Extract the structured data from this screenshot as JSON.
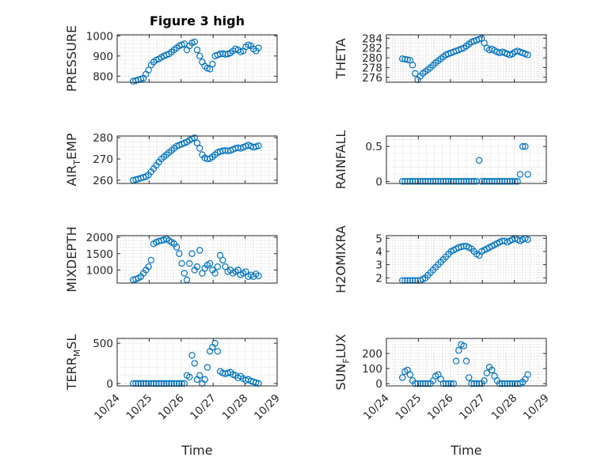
{
  "figure": {
    "title": "Figure 3 high",
    "marker_color": "#0072bd"
  },
  "chart_data": [
    {
      "id": "pressure",
      "type": "scatter",
      "title": "Figure 3 high",
      "ylabel": "PRESSURE",
      "ylim": [
        770,
        1005
      ],
      "yticks": [
        800,
        900,
        1000
      ],
      "xlim": [
        24,
        29
      ],
      "xticks": [],
      "xlabel": "",
      "grid": true,
      "x": [
        24.5,
        24.58,
        24.66,
        24.74,
        24.82,
        24.9,
        24.98,
        25.06,
        25.14,
        25.22,
        25.3,
        25.38,
        25.46,
        25.54,
        25.62,
        25.7,
        25.78,
        25.86,
        25.94,
        26.02,
        26.1,
        26.18,
        26.26,
        26.34,
        26.42,
        26.5,
        26.58,
        26.66,
        26.74,
        26.82,
        26.9,
        26.98,
        27.06,
        27.14,
        27.22,
        27.3,
        27.38,
        27.46,
        27.54,
        27.62,
        27.7,
        27.78,
        27.86,
        27.94,
        28.02,
        28.1,
        28.18,
        28.26,
        28.34,
        28.42
      ],
      "y": [
        775,
        778,
        782,
        786,
        790,
        810,
        830,
        855,
        870,
        880,
        885,
        893,
        900,
        905,
        910,
        920,
        930,
        940,
        950,
        955,
        960,
        930,
        950,
        965,
        970,
        930,
        900,
        870,
        850,
        840,
        835,
        860,
        900,
        905,
        910,
        912,
        908,
        910,
        915,
        925,
        935,
        930,
        920,
        925,
        945,
        955,
        950,
        935,
        925,
        940
      ]
    },
    {
      "id": "theta",
      "type": "scatter",
      "ylabel": "THETA",
      "ylim": [
        275,
        284.7
      ],
      "yticks": [
        276,
        278,
        280,
        282,
        284
      ],
      "xlim": [
        24,
        29
      ],
      "xticks": [],
      "xlabel": "",
      "grid": true,
      "x": [
        24.5,
        24.58,
        24.66,
        24.74,
        24.82,
        24.9,
        24.98,
        25.06,
        25.14,
        25.22,
        25.3,
        25.38,
        25.46,
        25.54,
        25.62,
        25.7,
        25.78,
        25.86,
        25.94,
        26.02,
        26.1,
        26.18,
        26.26,
        26.34,
        26.42,
        26.5,
        26.58,
        26.66,
        26.74,
        26.82,
        26.9,
        26.98,
        27.06,
        27.14,
        27.22,
        27.3,
        27.38,
        27.46,
        27.54,
        27.62,
        27.7,
        27.78,
        27.86,
        27.94,
        28.02,
        28.1,
        28.18,
        28.26,
        28.34,
        28.42
      ],
      "y": [
        279.8,
        279.7,
        279.6,
        279.5,
        278.5,
        276.8,
        275.5,
        276.2,
        276.8,
        277.2,
        277.6,
        278.0,
        278.5,
        279.0,
        279.4,
        279.8,
        280.2,
        280.6,
        280.8,
        281.0,
        281.2,
        281.4,
        281.6,
        281.8,
        282.0,
        282.4,
        282.8,
        283.2,
        283.4,
        283.6,
        283.8,
        284.0,
        283.0,
        282.0,
        281.6,
        281.8,
        281.5,
        281.2,
        281.0,
        281.2,
        281.0,
        280.8,
        280.6,
        280.8,
        281.2,
        281.4,
        281.2,
        281.0,
        280.8,
        280.6
      ]
    },
    {
      "id": "air_temp",
      "type": "scatter",
      "ylabel": "AIR",
      "ylabel_sub": "T",
      "ylabel_rest": "EMP",
      "ylim": [
        258.5,
        280.8
      ],
      "yticks": [
        260,
        270,
        280
      ],
      "xlim": [
        24,
        29
      ],
      "xticks": [],
      "xlabel": "",
      "grid": true,
      "x": [
        24.5,
        24.58,
        24.66,
        24.74,
        24.82,
        24.9,
        24.98,
        25.06,
        25.14,
        25.22,
        25.3,
        25.38,
        25.46,
        25.54,
        25.62,
        25.7,
        25.78,
        25.86,
        25.94,
        26.02,
        26.1,
        26.18,
        26.26,
        26.34,
        26.42,
        26.5,
        26.58,
        26.66,
        26.74,
        26.82,
        26.9,
        26.98,
        27.06,
        27.14,
        27.22,
        27.3,
        27.38,
        27.46,
        27.54,
        27.62,
        27.7,
        27.78,
        27.86,
        27.94,
        28.02,
        28.1,
        28.18,
        28.26,
        28.34,
        28.42
      ],
      "y": [
        260,
        260.3,
        260.6,
        261,
        261.4,
        261.7,
        262.5,
        264,
        265.5,
        267,
        268.5,
        270,
        271,
        272,
        273,
        274,
        275,
        276,
        276.5,
        277,
        277.5,
        278,
        278.8,
        279.5,
        280,
        277.5,
        275,
        272,
        270.5,
        270,
        270.2,
        271,
        272,
        273,
        273.5,
        273.8,
        274,
        273.8,
        274,
        274.5,
        275,
        275.3,
        275,
        275.5,
        276,
        276.5,
        276,
        275.5,
        275.8,
        276.2
      ]
    },
    {
      "id": "rainfall",
      "type": "scatter",
      "ylabel": "RAINFALL",
      "ylim": [
        -0.03,
        0.65
      ],
      "yticks": [
        0,
        0.5
      ],
      "ytick_labels": [
        "0",
        "0.5"
      ],
      "xlim": [
        24,
        29
      ],
      "xticks": [],
      "xlabel": "",
      "grid": true,
      "x": [
        24.5,
        24.58,
        24.66,
        24.74,
        24.82,
        24.9,
        24.98,
        25.06,
        25.14,
        25.22,
        25.3,
        25.38,
        25.46,
        25.54,
        25.62,
        25.7,
        25.78,
        25.86,
        25.94,
        26.02,
        26.1,
        26.18,
        26.26,
        26.34,
        26.42,
        26.5,
        26.58,
        26.66,
        26.74,
        26.82,
        26.9,
        26.98,
        27.06,
        27.14,
        27.22,
        27.3,
        27.38,
        27.46,
        27.54,
        27.62,
        27.7,
        27.78,
        27.86,
        27.94,
        28.02,
        28.1,
        28.18,
        28.26,
        28.34,
        28.42
      ],
      "y": [
        0,
        0,
        0,
        0,
        0,
        0,
        0,
        0,
        0,
        0,
        0,
        0,
        0,
        0,
        0,
        0,
        0,
        0,
        0,
        0,
        0,
        0,
        0,
        0,
        0,
        0,
        0,
        0,
        0,
        0,
        0.3,
        0,
        0,
        0,
        0,
        0,
        0,
        0,
        0,
        0,
        0,
        0,
        0,
        0,
        0,
        0,
        0.1,
        0.5,
        0.5,
        0.1
      ]
    },
    {
      "id": "mixdepth",
      "type": "scatter",
      "ylabel": "MIXDEPTH",
      "ylim": [
        600,
        2050
      ],
      "yticks": [
        1000,
        1500,
        2000
      ],
      "xlim": [
        24,
        29
      ],
      "xticks": [],
      "xlabel": "",
      "grid": true,
      "x": [
        24.5,
        24.58,
        24.66,
        24.74,
        24.82,
        24.9,
        24.98,
        25.06,
        25.14,
        25.22,
        25.3,
        25.38,
        25.46,
        25.54,
        25.62,
        25.7,
        25.78,
        25.86,
        25.94,
        26.02,
        26.1,
        26.18,
        26.26,
        26.34,
        26.42,
        26.5,
        26.58,
        26.66,
        26.74,
        26.82,
        26.9,
        26.98,
        27.06,
        27.14,
        27.22,
        27.3,
        27.38,
        27.46,
        27.54,
        27.62,
        27.7,
        27.78,
        27.86,
        27.94,
        28.02,
        28.1,
        28.18,
        28.26,
        28.34,
        28.42
      ],
      "y": [
        700,
        720,
        750,
        800,
        900,
        1000,
        1100,
        1300,
        1800,
        1850,
        1880,
        1900,
        1920,
        1950,
        1900,
        1850,
        1800,
        1700,
        1500,
        1200,
        900,
        700,
        1200,
        1500,
        1000,
        1100,
        1600,
        900,
        1050,
        1150,
        1200,
        1000,
        900,
        1100,
        1450,
        1300,
        1100,
        950,
        1000,
        900,
        950,
        1000,
        850,
        900,
        950,
        800,
        850,
        800,
        880,
        820
      ]
    },
    {
      "id": "h2omixra",
      "type": "scatter",
      "ylabel": "H2OMIXRA",
      "ylim": [
        1.6,
        5.2
      ],
      "yticks": [
        2,
        3,
        4,
        5
      ],
      "xlim": [
        24,
        29
      ],
      "xticks": [],
      "xlabel": "",
      "grid": true,
      "x": [
        24.5,
        24.58,
        24.66,
        24.74,
        24.82,
        24.9,
        24.98,
        25.06,
        25.14,
        25.22,
        25.3,
        25.38,
        25.46,
        25.54,
        25.62,
        25.7,
        25.78,
        25.86,
        25.94,
        26.02,
        26.1,
        26.18,
        26.26,
        26.34,
        26.42,
        26.5,
        26.58,
        26.66,
        26.74,
        26.82,
        26.9,
        26.98,
        27.06,
        27.14,
        27.22,
        27.3,
        27.38,
        27.46,
        27.54,
        27.62,
        27.7,
        27.78,
        27.86,
        27.94,
        28.02,
        28.1,
        28.18,
        28.26,
        28.34,
        28.42
      ],
      "y": [
        1.8,
        1.8,
        1.8,
        1.8,
        1.8,
        1.8,
        1.8,
        1.8,
        1.9,
        2.0,
        2.2,
        2.4,
        2.6,
        2.8,
        3.0,
        3.2,
        3.4,
        3.6,
        3.8,
        4.0,
        4.1,
        4.2,
        4.3,
        4.35,
        4.4,
        4.4,
        4.3,
        4.2,
        4.0,
        3.8,
        3.7,
        4.0,
        4.1,
        4.2,
        4.3,
        4.4,
        4.5,
        4.6,
        4.7,
        4.8,
        4.8,
        4.7,
        4.8,
        4.9,
        5.0,
        4.9,
        4.8,
        4.9,
        5.0,
        4.9
      ]
    },
    {
      "id": "terr_msl",
      "type": "scatter",
      "ylabel": "TERR",
      "ylabel_sub": "M",
      "ylabel_rest": "SL",
      "ylim": [
        -30,
        560
      ],
      "yticks": [
        0,
        500
      ],
      "xlim": [
        24,
        29
      ],
      "xticks": [
        24,
        25,
        26,
        27,
        28,
        29
      ],
      "xtick_labels": [
        "10/24",
        "10/25",
        "10/26",
        "10/27",
        "10/28",
        "10/29"
      ],
      "xlabel": "Time",
      "grid": true,
      "x": [
        24.5,
        24.58,
        24.66,
        24.74,
        24.82,
        24.9,
        24.98,
        25.06,
        25.14,
        25.22,
        25.3,
        25.38,
        25.46,
        25.54,
        25.62,
        25.7,
        25.78,
        25.86,
        25.94,
        26.02,
        26.1,
        26.18,
        26.26,
        26.34,
        26.42,
        26.5,
        26.58,
        26.66,
        26.74,
        26.82,
        26.9,
        26.98,
        27.06,
        27.14,
        27.22,
        27.3,
        27.38,
        27.46,
        27.54,
        27.62,
        27.7,
        27.78,
        27.86,
        27.94,
        28.02,
        28.1,
        28.18,
        28.26,
        28.34,
        28.42
      ],
      "y": [
        0,
        0,
        0,
        0,
        0,
        0,
        0,
        0,
        0,
        0,
        0,
        0,
        0,
        0,
        0,
        0,
        0,
        0,
        0,
        0,
        0,
        100,
        80,
        350,
        250,
        50,
        100,
        0,
        50,
        200,
        400,
        450,
        500,
        400,
        150,
        130,
        120,
        130,
        140,
        110,
        100,
        70,
        90,
        60,
        40,
        50,
        30,
        20,
        10,
        0
      ]
    },
    {
      "id": "sun_flux",
      "type": "scatter",
      "ylabel": "SUN",
      "ylabel_sub": "F",
      "ylabel_rest": "LUX",
      "ylim": [
        -15,
        300
      ],
      "yticks": [
        0,
        100,
        200
      ],
      "xlim": [
        24,
        29
      ],
      "xticks": [
        24,
        25,
        26,
        27,
        28,
        29
      ],
      "xtick_labels": [
        "10/24",
        "10/25",
        "10/26",
        "10/27",
        "10/28",
        "10/29"
      ],
      "xlabel": "Time",
      "grid": true,
      "x": [
        24.5,
        24.58,
        24.66,
        24.74,
        24.82,
        24.9,
        24.98,
        25.06,
        25.14,
        25.22,
        25.3,
        25.38,
        25.46,
        25.54,
        25.62,
        25.7,
        25.78,
        25.86,
        25.94,
        26.02,
        26.1,
        26.18,
        26.26,
        26.34,
        26.42,
        26.5,
        26.58,
        26.66,
        26.74,
        26.82,
        26.9,
        26.98,
        27.06,
        27.14,
        27.22,
        27.3,
        27.38,
        27.46,
        27.54,
        27.62,
        27.7,
        27.78,
        27.86,
        27.94,
        28.02,
        28.1,
        28.18,
        28.26,
        28.34,
        28.42
      ],
      "y": [
        40,
        80,
        90,
        60,
        20,
        0,
        0,
        0,
        0,
        0,
        0,
        0,
        20,
        50,
        60,
        30,
        0,
        0,
        0,
        0,
        0,
        150,
        220,
        260,
        250,
        150,
        40,
        0,
        0,
        0,
        0,
        0,
        20,
        70,
        110,
        90,
        50,
        20,
        0,
        0,
        0,
        0,
        0,
        0,
        0,
        0,
        0,
        10,
        30,
        60
      ]
    }
  ]
}
